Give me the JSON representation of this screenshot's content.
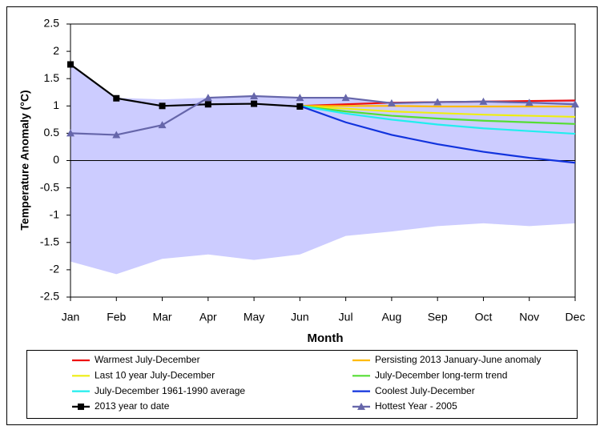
{
  "chart_data": {
    "type": "line",
    "x_label": "Month",
    "y_label": "Temperature Anomaly (°C)",
    "categories": [
      "Jan",
      "Feb",
      "Mar",
      "Apr",
      "May",
      "Jun",
      "Jul",
      "Aug",
      "Sep",
      "Oct",
      "Nov",
      "Dec"
    ],
    "ylim": [
      -2.5,
      2.5
    ],
    "yticks": [
      2.5,
      2,
      1.5,
      1,
      0.5,
      0,
      -0.5,
      -1,
      -1.5,
      -2,
      -2.5
    ],
    "grid": false,
    "band": {
      "color": "#ccccff",
      "upper": [
        1.76,
        1.15,
        1.12,
        1.15,
        1.18,
        1.15,
        1.15,
        1.07,
        1.08,
        1.1,
        1.1,
        1.12
      ],
      "lower": [
        -1.85,
        -2.08,
        -1.8,
        -1.72,
        -1.82,
        -1.72,
        -1.38,
        -1.3,
        -1.2,
        -1.15,
        -1.2,
        -1.15
      ]
    },
    "series": [
      {
        "name": "Warmest July-December",
        "color": "#ee1111",
        "values": [
          null,
          null,
          null,
          null,
          null,
          1.0,
          1.03,
          1.06,
          1.07,
          1.08,
          1.09,
          1.1
        ]
      },
      {
        "name": "Persisting 2013 January-June anomaly",
        "color": "#ffbb00",
        "values": [
          null,
          null,
          null,
          null,
          null,
          1.0,
          1.0,
          1.0,
          0.99,
          0.99,
          0.99,
          0.99
        ]
      },
      {
        "name": "Last 10 year July-December",
        "color": "#eeee11",
        "values": [
          null,
          null,
          null,
          null,
          null,
          1.0,
          0.95,
          0.9,
          0.87,
          0.84,
          0.82,
          0.8
        ]
      },
      {
        "name": "July-December long-term trend",
        "color": "#55dd33",
        "values": [
          null,
          null,
          null,
          null,
          null,
          1.0,
          0.9,
          0.82,
          0.77,
          0.73,
          0.7,
          0.67
        ]
      },
      {
        "name": "July-December 1961-1990 average",
        "color": "#22eeee",
        "values": [
          null,
          null,
          null,
          null,
          null,
          1.0,
          0.86,
          0.75,
          0.66,
          0.59,
          0.54,
          0.49
        ]
      },
      {
        "name": "Coolest July-December",
        "color": "#1133dd",
        "values": [
          null,
          null,
          null,
          null,
          null,
          1.0,
          0.7,
          0.47,
          0.3,
          0.16,
          0.05,
          -0.04
        ]
      },
      {
        "name": "2013 year to date",
        "color": "#000000",
        "marker": "square",
        "values": [
          1.76,
          1.14,
          1.0,
          1.03,
          1.04,
          0.99,
          null,
          null,
          null,
          null,
          null,
          null
        ]
      },
      {
        "name": "Hottest Year - 2005",
        "color": "#6666aa",
        "marker": "triangle",
        "values": [
          0.5,
          0.47,
          0.65,
          1.15,
          1.18,
          1.15,
          1.15,
          1.05,
          1.07,
          1.08,
          1.06,
          1.03
        ]
      }
    ]
  }
}
